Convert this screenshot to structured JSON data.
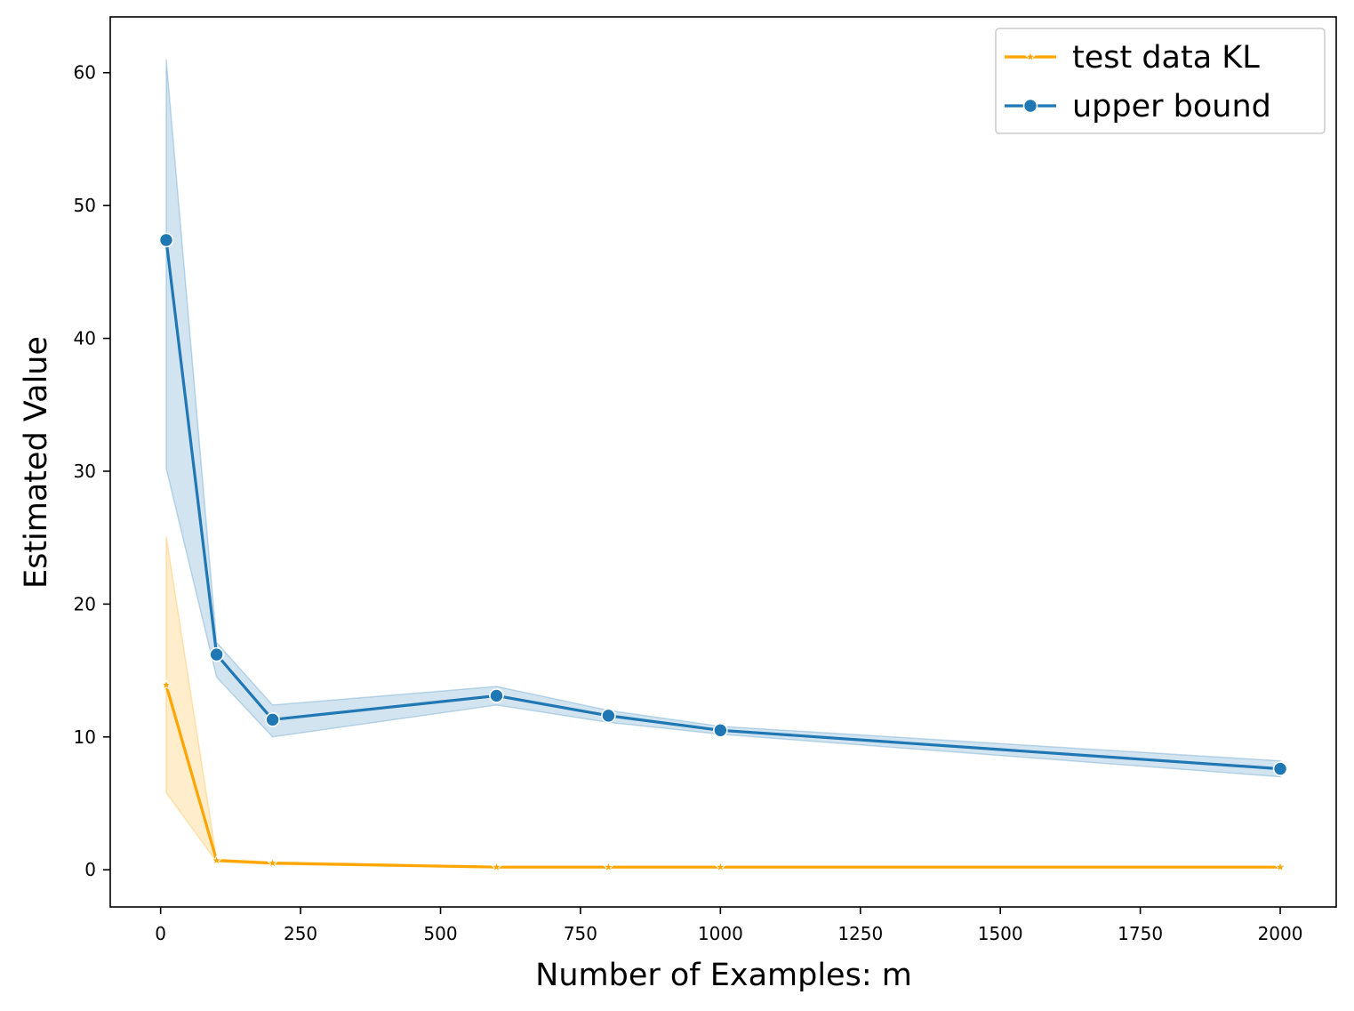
{
  "chart_data": {
    "type": "line",
    "title": "",
    "xlabel": "Number of Examples: m",
    "ylabel": "Estimated Value",
    "xlim": [
      -90,
      2100
    ],
    "ylim": [
      -2.8,
      64.2
    ],
    "xticks": [
      0,
      250,
      500,
      750,
      1000,
      1250,
      1500,
      1750,
      2000
    ],
    "yticks": [
      0,
      10,
      20,
      30,
      40,
      50,
      60
    ],
    "grid": false,
    "legend_position": "top-right",
    "x": [
      10,
      100,
      200,
      600,
      800,
      1000,
      2000
    ],
    "series": [
      {
        "name": "test data KL",
        "color": "#ffa500",
        "marker": "star",
        "values": [
          13.9,
          0.7,
          0.5,
          0.2,
          0.2,
          0.2,
          0.2
        ],
        "ci_lower": [
          5.8,
          0.6,
          0.4,
          0.15,
          0.15,
          0.15,
          0.15
        ],
        "ci_upper": [
          25.1,
          0.8,
          0.6,
          0.25,
          0.25,
          0.25,
          0.25
        ]
      },
      {
        "name": "upper bound",
        "color": "#1f77b4",
        "marker": "circle",
        "values": [
          47.4,
          16.2,
          11.3,
          13.1,
          11.6,
          10.5,
          7.6
        ],
        "ci_lower": [
          30.2,
          14.5,
          10.0,
          12.4,
          11.1,
          10.2,
          7.0
        ],
        "ci_upper": [
          61.0,
          17.1,
          12.4,
          13.8,
          12.0,
          10.8,
          8.2
        ]
      }
    ]
  }
}
